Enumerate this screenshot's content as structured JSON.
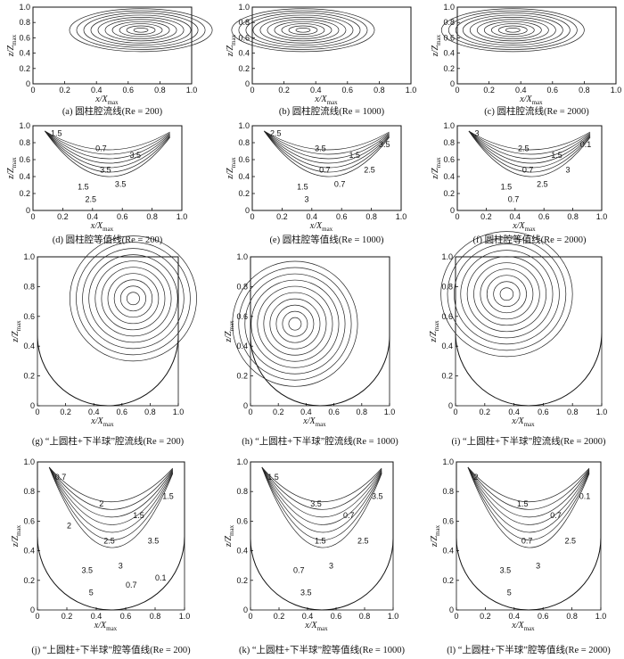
{
  "figure": {
    "x_axis": {
      "label": "x/X",
      "subscript": "max",
      "ticks": [
        "0",
        "0.2",
        "0.4",
        "0.6",
        "0.8",
        "1.0"
      ]
    },
    "y_axis": {
      "label": "z/Z",
      "subscript": "max",
      "ticks": [
        "0",
        "0.2",
        "0.4",
        "0.6",
        "0.8",
        "1.0"
      ]
    },
    "panels": [
      {
        "id": "a",
        "shape": "rect",
        "kind": "streamlines",
        "caption": "(a) 圆柱腔流线(Re = 200)",
        "labels": []
      },
      {
        "id": "b",
        "shape": "rect",
        "kind": "streamlines",
        "caption": "(b) 圆柱腔流线(Re = 1000)",
        "labels": []
      },
      {
        "id": "c",
        "shape": "rect",
        "kind": "streamlines",
        "caption": "(c) 圆柱腔流线(Re = 2000)",
        "labels": []
      },
      {
        "id": "d",
        "shape": "rect",
        "kind": "contours",
        "caption": "(d) 圆柱腔等值线(Re = 200)",
        "labels": [
          "1.5",
          "0.7",
          "3.5",
          "3.5",
          "1.5",
          "2.5",
          "3.5"
        ]
      },
      {
        "id": "e",
        "shape": "rect",
        "kind": "contours",
        "caption": "(e) 圆柱腔等值线(Re = 1000)",
        "labels": [
          "2.5",
          "3.5",
          "1.5",
          "0.7",
          "1.5",
          "3",
          "0.7",
          "2.5",
          "3.5"
        ]
      },
      {
        "id": "f",
        "shape": "rect",
        "kind": "contours",
        "caption": "(f) 圆柱腔等值线(Re = 2000)",
        "labels": [
          "3",
          "2.5",
          "1.5",
          "0.7",
          "1.5",
          "0.7",
          "2.5",
          "3",
          "0.1"
        ]
      },
      {
        "id": "g",
        "shape": "cup",
        "kind": "streamlines",
        "caption": "(g) “上圆柱+下半球”腔流线(Re = 200)",
        "labels": []
      },
      {
        "id": "h",
        "shape": "cup",
        "kind": "streamlines",
        "caption": "(h) “上圆柱+下半球”腔流线(Re = 1000)",
        "labels": []
      },
      {
        "id": "i",
        "shape": "cup",
        "kind": "streamlines",
        "caption": "(i) “上圆柱+下半球”腔流线(Re = 2000)",
        "labels": []
      },
      {
        "id": "j",
        "shape": "cup",
        "kind": "contours",
        "caption": "(j) “上圆柱+下半球”腔等值线(Re = 200)",
        "labels": [
          "0.7",
          "2",
          "1.5",
          "2.5",
          "3.5",
          "5",
          "3",
          "3.5",
          "1.5",
          "2",
          "0.7",
          "0.1"
        ]
      },
      {
        "id": "k",
        "shape": "cup",
        "kind": "contours",
        "caption": "(k) “上圆柱+下半球”腔等值线(Re = 1000)",
        "labels": [
          "1.5",
          "3.5",
          "0.7",
          "1.5",
          "0.7",
          "3.5",
          "3",
          "2.5",
          "3.5"
        ]
      },
      {
        "id": "l",
        "shape": "cup",
        "kind": "contours",
        "caption": "(l) “上圆柱+下半球”腔等值线(Re = 2000)",
        "labels": [
          "2",
          "1.5",
          "0.7",
          "0.7",
          "3.5",
          "5",
          "3",
          "2.5",
          "0.1"
        ]
      }
    ]
  }
}
